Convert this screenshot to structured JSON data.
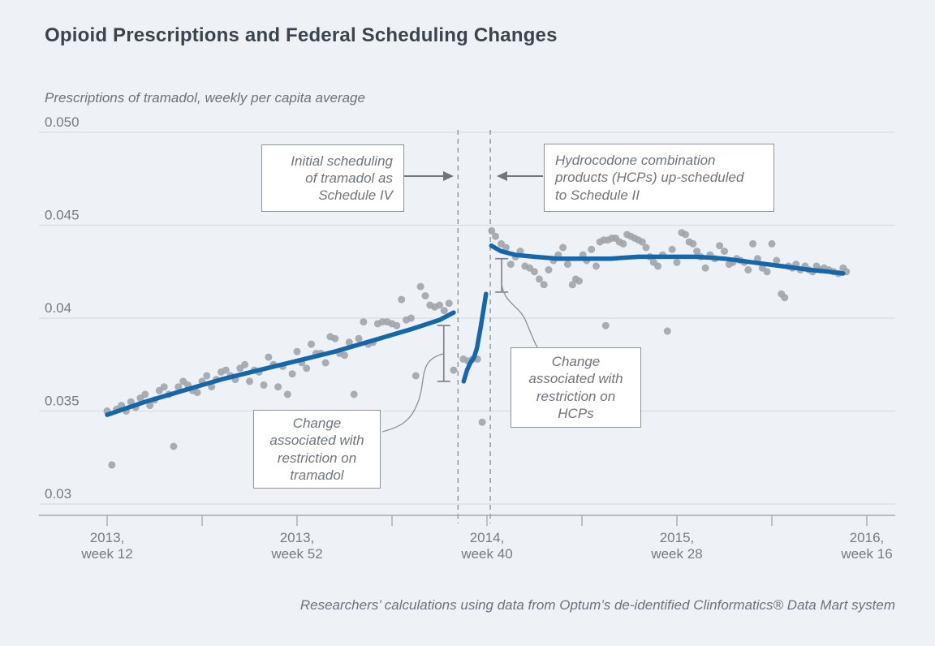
{
  "chart_data": {
    "type": "scatter",
    "title": "Opioid Prescriptions and Federal Scheduling Changes",
    "ylabel": "Prescriptions of tramadol, weekly per capita average",
    "source": "Researchers’ calculations using data from Optum’s de-identified Clinformatics® Data Mart system",
    "x_axis": {
      "unit": "weeks since 2013 week 12",
      "tick_weeks": [
        0,
        20,
        40,
        60,
        80,
        100,
        120,
        140,
        160
      ],
      "labeled_ticks": [
        {
          "week": 0,
          "label": "2013,\nweek 12"
        },
        {
          "week": 40,
          "label": "2013,\nweek 52"
        },
        {
          "week": 80,
          "label": "2014,\nweek 40"
        },
        {
          "week": 120,
          "label": "2015,\nweek 28"
        },
        {
          "week": 160,
          "label": "2016,\nweek 16"
        }
      ]
    },
    "y_axis": {
      "min": 0.03,
      "max": 0.05,
      "grid": true,
      "ticks": [
        {
          "value": 0.05,
          "label": "0.050"
        },
        {
          "value": 0.045,
          "label": "0.045"
        },
        {
          "value": 0.04,
          "label": "0.04"
        },
        {
          "value": 0.035,
          "label": "0.035"
        },
        {
          "value": 0.03,
          "label": "0.03"
        }
      ]
    },
    "events": [
      {
        "name": "tramadol_schedule_iv",
        "week": 73.9
      },
      {
        "name": "hcp_schedule_ii",
        "week": 80.7
      }
    ],
    "brackets": [
      {
        "name": "tramadol_change",
        "week": 70.9,
        "v_top": 0.0396,
        "v_bottom": 0.0366
      },
      {
        "name": "hcp_change",
        "week": 83.1,
        "v_top": 0.0432,
        "v_bottom": 0.0414
      }
    ],
    "trend_segments": [
      {
        "name": "pre_tramadol_scheduling",
        "points": [
          [
            0,
            0.0348
          ],
          [
            8,
            0.0355
          ],
          [
            16,
            0.0361
          ],
          [
            24,
            0.0367
          ],
          [
            32,
            0.0372
          ],
          [
            40,
            0.0377
          ],
          [
            48,
            0.0382
          ],
          [
            56,
            0.0388
          ],
          [
            64,
            0.0394
          ],
          [
            70,
            0.0399
          ],
          [
            73,
            0.0403
          ]
        ]
      },
      {
        "name": "between_schedulings",
        "points": [
          [
            75.1,
            0.0366
          ],
          [
            75.8,
            0.0372
          ],
          [
            76.5,
            0.0376
          ],
          [
            77.3,
            0.0379
          ],
          [
            77.9,
            0.0384
          ],
          [
            78.6,
            0.0394
          ],
          [
            79.3,
            0.0405
          ],
          [
            79.8,
            0.0413
          ]
        ]
      },
      {
        "name": "post_hcp_scheduling",
        "points": [
          [
            80.9,
            0.0439
          ],
          [
            83,
            0.0436
          ],
          [
            86,
            0.0434
          ],
          [
            90,
            0.0433
          ],
          [
            95,
            0.0432
          ],
          [
            100,
            0.0432
          ],
          [
            106,
            0.0432
          ],
          [
            112,
            0.0433
          ],
          [
            118,
            0.0433
          ],
          [
            124,
            0.0433
          ],
          [
            130,
            0.0432
          ],
          [
            136,
            0.043
          ],
          [
            142,
            0.0428
          ],
          [
            148,
            0.0426
          ],
          [
            152,
            0.0425
          ],
          [
            155,
            0.0424
          ]
        ]
      }
    ],
    "scatter": [
      [
        0,
        0.035
      ],
      [
        1,
        0.0321
      ],
      [
        2,
        0.0351
      ],
      [
        3,
        0.0353
      ],
      [
        4,
        0.035
      ],
      [
        5,
        0.0355
      ],
      [
        6,
        0.0352
      ],
      [
        7,
        0.0357
      ],
      [
        8,
        0.0359
      ],
      [
        9,
        0.0353
      ],
      [
        10,
        0.0356
      ],
      [
        11,
        0.0361
      ],
      [
        12,
        0.0363
      ],
      [
        13,
        0.0359
      ],
      [
        14,
        0.0331
      ],
      [
        15,
        0.0363
      ],
      [
        16,
        0.0366
      ],
      [
        17,
        0.0364
      ],
      [
        18,
        0.0361
      ],
      [
        19,
        0.036
      ],
      [
        20,
        0.0366
      ],
      [
        21,
        0.0369
      ],
      [
        22,
        0.0363
      ],
      [
        23,
        0.0367
      ],
      [
        24,
        0.0371
      ],
      [
        25,
        0.0372
      ],
      [
        26,
        0.0369
      ],
      [
        27,
        0.0367
      ],
      [
        28,
        0.0373
      ],
      [
        29,
        0.0375
      ],
      [
        30,
        0.0366
      ],
      [
        31,
        0.0372
      ],
      [
        32,
        0.0371
      ],
      [
        33,
        0.0364
      ],
      [
        34,
        0.0379
      ],
      [
        35,
        0.0375
      ],
      [
        36,
        0.0363
      ],
      [
        37,
        0.0374
      ],
      [
        38,
        0.0359
      ],
      [
        39,
        0.037
      ],
      [
        40,
        0.0382
      ],
      [
        41,
        0.0376
      ],
      [
        42,
        0.0373
      ],
      [
        43,
        0.0386
      ],
      [
        44,
        0.0381
      ],
      [
        45,
        0.0381
      ],
      [
        46,
        0.0376
      ],
      [
        47,
        0.039
      ],
      [
        48,
        0.0389
      ],
      [
        49,
        0.0381
      ],
      [
        50,
        0.038
      ],
      [
        51,
        0.0387
      ],
      [
        52,
        0.0359
      ],
      [
        53,
        0.0389
      ],
      [
        54,
        0.0398
      ],
      [
        55,
        0.0386
      ],
      [
        56,
        0.0387
      ],
      [
        57,
        0.0397
      ],
      [
        58,
        0.0398
      ],
      [
        59,
        0.0398
      ],
      [
        60,
        0.0397
      ],
      [
        61,
        0.0396
      ],
      [
        62,
        0.041
      ],
      [
        63,
        0.0399
      ],
      [
        64,
        0.04
      ],
      [
        65,
        0.0369
      ],
      [
        66,
        0.0417
      ],
      [
        67,
        0.0412
      ],
      [
        68,
        0.0407
      ],
      [
        69,
        0.0406
      ],
      [
        70,
        0.0407
      ],
      [
        71,
        0.0404
      ],
      [
        72,
        0.0408
      ],
      [
        73,
        0.0372
      ],
      [
        75,
        0.0378
      ],
      [
        76,
        0.0377
      ],
      [
        77,
        0.0378
      ],
      [
        78,
        0.0378
      ],
      [
        79,
        0.0344
      ],
      [
        81,
        0.0447
      ],
      [
        81.8,
        0.0444
      ],
      [
        83,
        0.044
      ],
      [
        84,
        0.0438
      ],
      [
        85,
        0.0429
      ],
      [
        86,
        0.0433
      ],
      [
        87,
        0.0436
      ],
      [
        88,
        0.0428
      ],
      [
        89,
        0.0427
      ],
      [
        90,
        0.0425
      ],
      [
        91,
        0.0421
      ],
      [
        92,
        0.0418
      ],
      [
        93,
        0.0426
      ],
      [
        94,
        0.0431
      ],
      [
        95,
        0.0434
      ],
      [
        96,
        0.0438
      ],
      [
        97,
        0.0429
      ],
      [
        98,
        0.0418
      ],
      [
        98.7,
        0.0421
      ],
      [
        99.4,
        0.042
      ],
      [
        100.2,
        0.0434
      ],
      [
        101,
        0.0431
      ],
      [
        102,
        0.0437
      ],
      [
        103,
        0.0428
      ],
      [
        103.8,
        0.0441
      ],
      [
        104.6,
        0.0442
      ],
      [
        105,
        0.0396
      ],
      [
        105.5,
        0.0442
      ],
      [
        106.3,
        0.0443
      ],
      [
        107.1,
        0.0443
      ],
      [
        107.9,
        0.0441
      ],
      [
        108.7,
        0.044
      ],
      [
        109.5,
        0.0445
      ],
      [
        110.3,
        0.0444
      ],
      [
        111.1,
        0.0443
      ],
      [
        111.9,
        0.0442
      ],
      [
        112.7,
        0.0441
      ],
      [
        113.5,
        0.0438
      ],
      [
        114.3,
        0.0433
      ],
      [
        115.1,
        0.043
      ],
      [
        116,
        0.0428
      ],
      [
        117,
        0.0434
      ],
      [
        118,
        0.0393
      ],
      [
        119,
        0.0437
      ],
      [
        120,
        0.043
      ],
      [
        121,
        0.0446
      ],
      [
        121.8,
        0.0445
      ],
      [
        122.6,
        0.0441
      ],
      [
        123.4,
        0.044
      ],
      [
        124.2,
        0.0436
      ],
      [
        125,
        0.0433
      ],
      [
        126,
        0.0427
      ],
      [
        127,
        0.0434
      ],
      [
        128,
        0.0432
      ],
      [
        129,
        0.0439
      ],
      [
        130,
        0.0436
      ],
      [
        131,
        0.0429
      ],
      [
        131.8,
        0.043
      ],
      [
        132.6,
        0.0432
      ],
      [
        133.4,
        0.0431
      ],
      [
        134.2,
        0.043
      ],
      [
        135,
        0.0426
      ],
      [
        136,
        0.044
      ],
      [
        137,
        0.0432
      ],
      [
        138,
        0.0427
      ],
      [
        139,
        0.0425
      ],
      [
        140,
        0.044
      ],
      [
        141,
        0.0431
      ],
      [
        142,
        0.0413
      ],
      [
        142.7,
        0.0411
      ],
      [
        143.5,
        0.0428
      ],
      [
        144.3,
        0.0427
      ],
      [
        145.1,
        0.0429
      ],
      [
        146,
        0.0426
      ],
      [
        147,
        0.0428
      ],
      [
        147.8,
        0.0426
      ],
      [
        148.6,
        0.0425
      ],
      [
        149.4,
        0.0428
      ],
      [
        150.2,
        0.0426
      ],
      [
        151,
        0.0427
      ],
      [
        152,
        0.0426
      ],
      [
        153,
        0.0425
      ],
      [
        154,
        0.0424
      ],
      [
        155,
        0.0427
      ],
      [
        155.7,
        0.0425
      ]
    ],
    "colors": {
      "background": "#eef2f7",
      "trend_line": "#1467ab",
      "scatter_dot": "#9fa3a7",
      "grid_line": "#d9dcdf",
      "axis_line": "#a5aaae",
      "dashed_event_line": "#8e969c",
      "annotation_text": "#6e757d",
      "title_text": "#3b434d"
    }
  },
  "annotations": {
    "tramadol_scheduling": "Initial scheduling\nof tramadol as\nSchedule IV",
    "hcp_scheduling": "Hydrocodone combination\nproducts (HCPs) up-scheduled\nto Schedule II",
    "tramadol_change": "Change\nassociated with\nrestriction on\ntramadol",
    "hcp_change": "Change\nassociated with\nrestriction on\nHCPs"
  }
}
